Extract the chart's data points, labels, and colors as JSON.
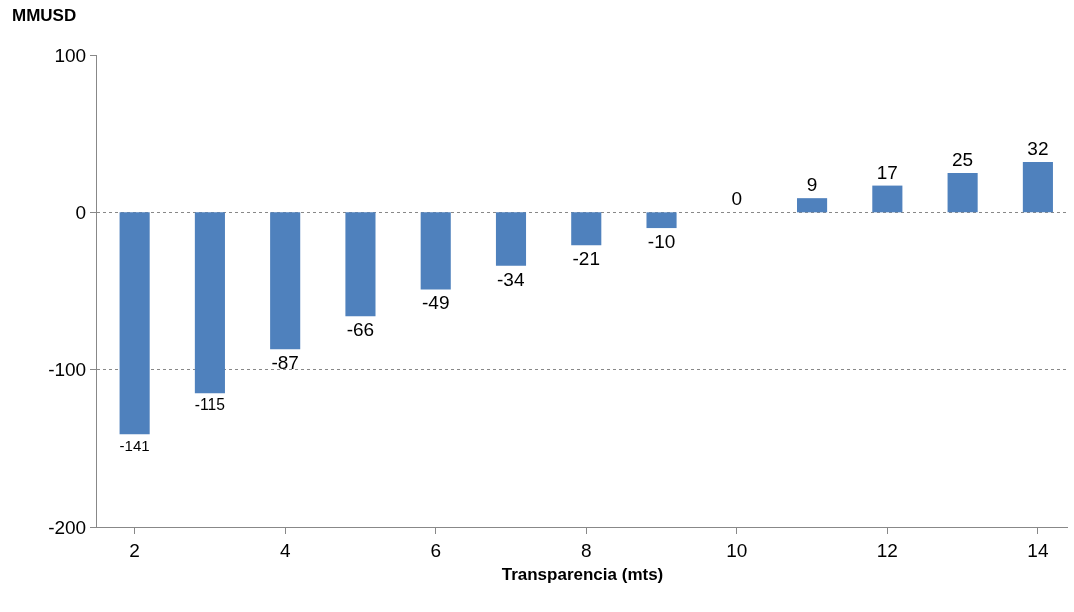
{
  "chart_data": {
    "type": "bar",
    "xlabel": "Transparencia (mts)",
    "ylabel": "MMUSD",
    "x": [
      2,
      3,
      4,
      5,
      6,
      7,
      8,
      9,
      10,
      11,
      12,
      13,
      14
    ],
    "values": [
      -141,
      -115,
      -87,
      -66,
      -49,
      -34,
      -21,
      -10,
      0,
      9,
      17,
      25,
      32
    ],
    "color": "#4f81bd",
    "xlim": [
      1.5,
      14.4
    ],
    "xticks": [
      2,
      4,
      6,
      8,
      10,
      12,
      14
    ],
    "ylim": [
      -200,
      100
    ],
    "yticks": [
      -200,
      -100,
      0,
      100
    ],
    "grid": "y",
    "data_labels": true
  }
}
